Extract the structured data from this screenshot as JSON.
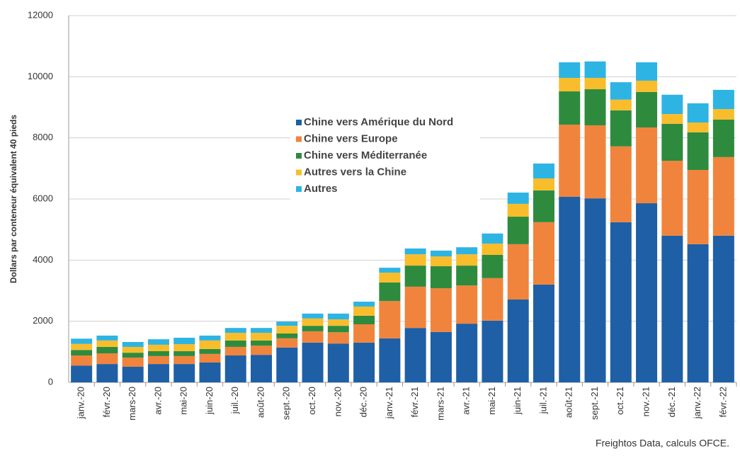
{
  "chart_data": {
    "type": "stacked_bar",
    "y_label": "Dollars par conteneur équivalent 40 pieds",
    "source": "Freightos Data, calculs OFCE.",
    "categories": [
      "janv.-20",
      "févr.-20",
      "mars-20",
      "avr.-20",
      "mai-20",
      "juin-20",
      "juil.-20",
      "août-20",
      "sept.-20",
      "oct.-20",
      "nov.-20",
      "déc.-20",
      "janv.-21",
      "févr.-21",
      "mars-21",
      "avr.-21",
      "mai-21",
      "juin-21",
      "juil.-21",
      "août-21",
      "sept.-21",
      "oct.-21",
      "nov.-21",
      "déc.-21",
      "janv.-22",
      "févr.-22"
    ],
    "series": [
      {
        "name": "Chine vers Amérique du Nord",
        "color": "#1f5fa6",
        "values": [
          550,
          600,
          510,
          600,
          600,
          650,
          880,
          900,
          1140,
          1300,
          1270,
          1300,
          1440,
          1780,
          1650,
          1920,
          2020,
          2710,
          3200,
          6070,
          6020,
          5240,
          5860,
          4800,
          4520,
          4800
        ]
      },
      {
        "name": "Chine vers Europe",
        "color": "#f0843c",
        "values": [
          330,
          350,
          300,
          260,
          260,
          280,
          280,
          300,
          300,
          370,
          370,
          600,
          1220,
          1350,
          1430,
          1250,
          1390,
          1810,
          2040,
          2360,
          2390,
          2480,
          2480,
          2450,
          2430,
          2570
        ]
      },
      {
        "name": "Chine vers Méditerranée",
        "color": "#2e8b3e",
        "values": [
          180,
          210,
          160,
          160,
          160,
          160,
          210,
          170,
          160,
          180,
          210,
          280,
          610,
          690,
          720,
          650,
          760,
          900,
          1040,
          1090,
          1180,
          1180,
          1160,
          1210,
          1230,
          1230
        ]
      },
      {
        "name": "Autres vers la Chine",
        "color": "#f9bd2c",
        "values": [
          200,
          210,
          190,
          210,
          230,
          280,
          250,
          250,
          250,
          240,
          210,
          300,
          320,
          370,
          320,
          370,
          370,
          420,
          390,
          440,
          370,
          350,
          370,
          320,
          320,
          340
        ]
      },
      {
        "name": "Autres",
        "color": "#2eb4e3",
        "values": [
          170,
          160,
          160,
          180,
          210,
          160,
          160,
          160,
          140,
          160,
          190,
          160,
          160,
          190,
          190,
          230,
          330,
          370,
          490,
          510,
          540,
          570,
          600,
          630,
          630,
          630
        ]
      }
    ],
    "ylim": [
      0,
      12000
    ],
    "yticks": [
      0,
      2000,
      4000,
      6000,
      8000,
      10000,
      12000
    ],
    "grid": true
  }
}
